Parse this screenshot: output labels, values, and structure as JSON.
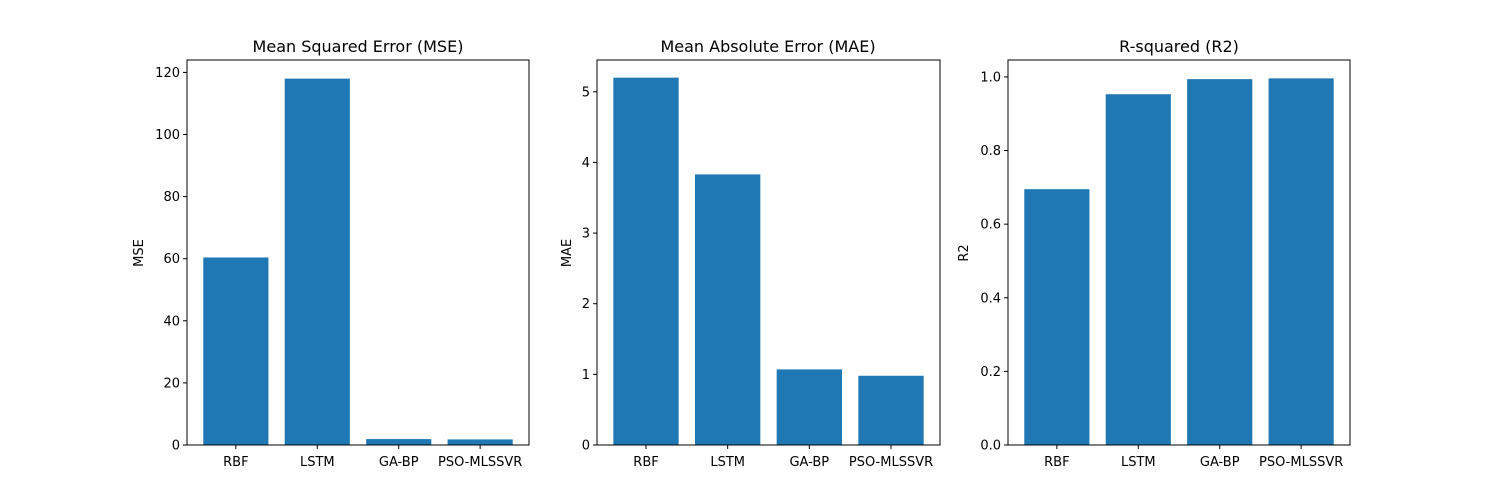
{
  "colors": {
    "bar": "#1f77b4",
    "axis": "#000000",
    "background": "#ffffff"
  },
  "chart_data": [
    {
      "type": "bar",
      "title": "Mean Squared Error (MSE)",
      "xlabel": "",
      "ylabel": "MSE",
      "categories": [
        "RBF",
        "LSTM",
        "GA-BP",
        "PSO-MLSSVR"
      ],
      "values": [
        60.4,
        118.0,
        1.9,
        1.8
      ],
      "ylim": [
        0,
        124
      ],
      "yticks": [
        0,
        20,
        40,
        60,
        80,
        100,
        120
      ],
      "ytick_labels": [
        "0",
        "20",
        "40",
        "60",
        "80",
        "100",
        "120"
      ],
      "grid": false,
      "legend": "none"
    },
    {
      "type": "bar",
      "title": "Mean Absolute Error (MAE)",
      "xlabel": "",
      "ylabel": "MAE",
      "categories": [
        "RBF",
        "LSTM",
        "GA-BP",
        "PSO-MLSSVR"
      ],
      "values": [
        5.2,
        3.83,
        1.07,
        0.98
      ],
      "ylim": [
        0,
        5.45
      ],
      "yticks": [
        0,
        1,
        2,
        3,
        4,
        5
      ],
      "ytick_labels": [
        "0",
        "1",
        "2",
        "3",
        "4",
        "5"
      ],
      "grid": false,
      "legend": "none"
    },
    {
      "type": "bar",
      "title": "R-squared (R2)",
      "xlabel": "",
      "ylabel": "R2",
      "categories": [
        "RBF",
        "LSTM",
        "GA-BP",
        "PSO-MLSSVR"
      ],
      "values": [
        0.695,
        0.953,
        0.994,
        0.996
      ],
      "ylim": [
        0,
        1.046
      ],
      "yticks": [
        0,
        0.2,
        0.4,
        0.6,
        0.8,
        1.0
      ],
      "ytick_labels": [
        "0.0",
        "0.2",
        "0.4",
        "0.6",
        "0.8",
        "1.0"
      ],
      "grid": false,
      "legend": "none"
    }
  ]
}
